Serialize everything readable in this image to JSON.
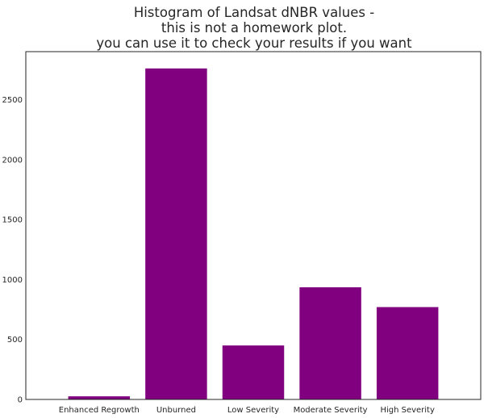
{
  "chart_data": {
    "type": "bar",
    "title_lines": [
      "Histogram of Landsat dNBR values -",
      "this is not a homework plot.",
      "you can use it to check your results if you want"
    ],
    "categories": [
      "Enhanced Regrowth",
      "Unburned",
      "Low Severity",
      "Moderate Severity",
      "High Severity"
    ],
    "values": [
      26,
      2760,
      450,
      935,
      770
    ],
    "ylim": [
      0,
      2900
    ],
    "yticks": [
      0,
      500,
      1000,
      1500,
      2000,
      2500
    ],
    "bar_color": "#800080",
    "axis_color": "#262626",
    "grid": false,
    "xlabel": "",
    "ylabel": ""
  }
}
